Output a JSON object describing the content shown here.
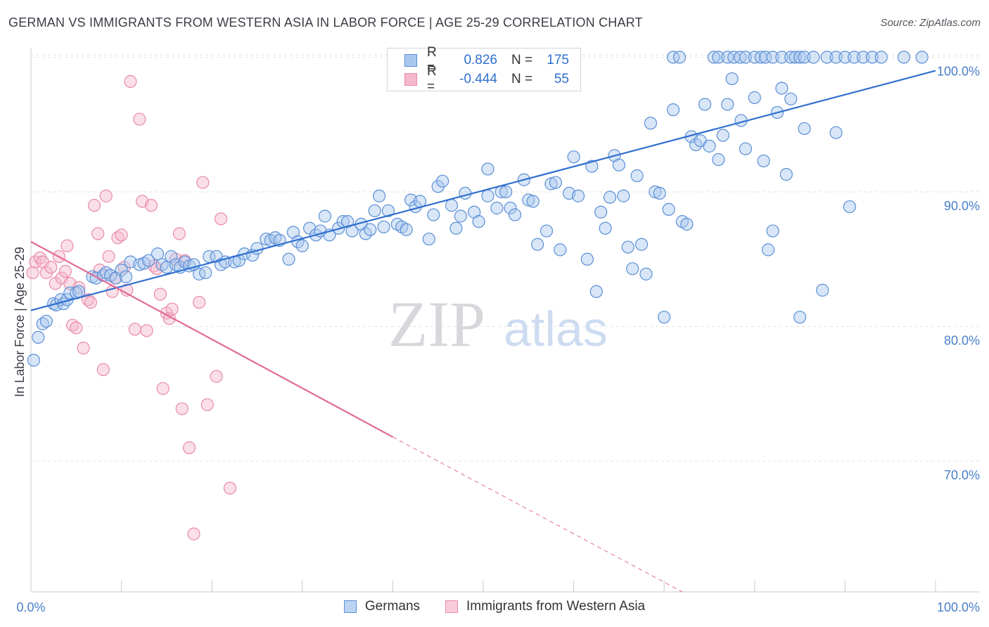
{
  "title": "GERMAN VS IMMIGRANTS FROM WESTERN ASIA IN LABOR FORCE | AGE 25-29 CORRELATION CHART",
  "source": "Source: ZipAtlas.com",
  "watermark": {
    "zip": "ZIP",
    "atlas": "atlas"
  },
  "legend": {
    "r_label": "R =",
    "n_label": "N =",
    "rows": [
      {
        "r": "0.826",
        "n": "175"
      },
      {
        "r": "-0.444",
        "n": "55"
      }
    ]
  },
  "colors": {
    "blue_fill": "#a9c7ee",
    "blue_stroke": "#5b8fd6",
    "blue_line": "#2f6fcf",
    "pink_fill": "#f5b8cc",
    "pink_stroke": "#e98aa9",
    "pink_line": "#e06a96",
    "tick_text": "#4a7fc9",
    "grid": "#e2e2e6"
  },
  "chart_data": {
    "type": "scatter",
    "title": "GERMAN VS IMMIGRANTS FROM WESTERN ASIA IN LABOR FORCE | AGE 25-29 CORRELATION CHART",
    "xlabel": "",
    "ylabel": "In Labor Force | Age 25-29",
    "xlim": [
      0,
      100
    ],
    "ylim": [
      60.3,
      100.7
    ],
    "x_tick_labels": [
      "0.0%",
      "100.0%"
    ],
    "y_ticks": [
      70,
      80,
      90,
      100
    ],
    "y_tick_labels": [
      "70.0%",
      "80.0%",
      "90.0%",
      "100.0%"
    ],
    "grid": true,
    "legend_position": "top-center",
    "series": [
      {
        "name": "Germans",
        "r": 0.826,
        "n": 175,
        "trend": {
          "x0": 0,
          "y0": 81.2,
          "x1": 100,
          "y1": 99.0,
          "dashed_from": null
        },
        "points": [
          [
            0.3,
            77.5
          ],
          [
            0.8,
            79.2
          ],
          [
            1.3,
            80.2
          ],
          [
            1.7,
            80.4
          ],
          [
            2.5,
            81.7
          ],
          [
            2.8,
            81.6
          ],
          [
            3.3,
            82.0
          ],
          [
            3.6,
            81.7
          ],
          [
            4.0,
            82.0
          ],
          [
            4.3,
            82.5
          ],
          [
            5.0,
            82.5
          ],
          [
            5.3,
            82.6
          ],
          [
            6.8,
            83.7
          ],
          [
            7.2,
            83.6
          ],
          [
            8.0,
            83.8
          ],
          [
            8.3,
            84.0
          ],
          [
            8.8,
            83.8
          ],
          [
            9.4,
            83.6
          ],
          [
            10.0,
            84.2
          ],
          [
            10.5,
            83.7
          ],
          [
            11.0,
            84.8
          ],
          [
            12.0,
            84.6
          ],
          [
            12.5,
            84.7
          ],
          [
            13.0,
            84.9
          ],
          [
            14.0,
            85.4
          ],
          [
            14.5,
            84.6
          ],
          [
            15.0,
            84.4
          ],
          [
            15.5,
            85.2
          ],
          [
            16.0,
            84.6
          ],
          [
            16.5,
            84.4
          ],
          [
            17.0,
            84.8
          ],
          [
            17.5,
            84.5
          ],
          [
            18.0,
            84.6
          ],
          [
            18.6,
            83.9
          ],
          [
            19.3,
            84.0
          ],
          [
            19.7,
            85.2
          ],
          [
            20.5,
            85.2
          ],
          [
            21.0,
            84.6
          ],
          [
            21.5,
            84.8
          ],
          [
            22.5,
            84.8
          ],
          [
            23.0,
            84.9
          ],
          [
            23.6,
            85.4
          ],
          [
            24.5,
            85.3
          ],
          [
            25.0,
            85.8
          ],
          [
            26.0,
            86.5
          ],
          [
            26.5,
            86.4
          ],
          [
            27.0,
            86.6
          ],
          [
            27.5,
            86.4
          ],
          [
            28.5,
            85.0
          ],
          [
            29.0,
            87.0
          ],
          [
            29.5,
            86.3
          ],
          [
            30.0,
            86.0
          ],
          [
            30.8,
            87.3
          ],
          [
            31.5,
            86.8
          ],
          [
            32.0,
            87.1
          ],
          [
            32.5,
            88.2
          ],
          [
            33.0,
            86.8
          ],
          [
            34.0,
            87.3
          ],
          [
            34.5,
            87.8
          ],
          [
            35.0,
            87.8
          ],
          [
            35.5,
            87.1
          ],
          [
            36.5,
            87.6
          ],
          [
            37.0,
            86.9
          ],
          [
            37.5,
            87.2
          ],
          [
            38.0,
            88.6
          ],
          [
            38.5,
            89.7
          ],
          [
            39.0,
            87.4
          ],
          [
            39.5,
            88.6
          ],
          [
            40.5,
            87.6
          ],
          [
            41.0,
            87.4
          ],
          [
            41.5,
            87.2
          ],
          [
            42.0,
            89.4
          ],
          [
            42.5,
            88.9
          ],
          [
            43.0,
            89.3
          ],
          [
            44.0,
            86.5
          ],
          [
            44.5,
            88.3
          ],
          [
            45.0,
            90.4
          ],
          [
            45.5,
            90.8
          ],
          [
            46.5,
            89.0
          ],
          [
            47.0,
            87.3
          ],
          [
            47.5,
            88.2
          ],
          [
            48.0,
            89.9
          ],
          [
            49.0,
            88.5
          ],
          [
            49.5,
            87.8
          ],
          [
            50.5,
            89.7
          ],
          [
            50.5,
            91.7
          ],
          [
            51.5,
            88.8
          ],
          [
            52.0,
            90.0
          ],
          [
            52.5,
            90.0
          ],
          [
            53.0,
            88.8
          ],
          [
            53.5,
            88.3
          ],
          [
            54.5,
            90.9
          ],
          [
            55.0,
            89.4
          ],
          [
            55.5,
            89.3
          ],
          [
            56.0,
            86.1
          ],
          [
            57.0,
            87.1
          ],
          [
            57.5,
            90.6
          ],
          [
            58.0,
            90.7
          ],
          [
            58.5,
            85.7
          ],
          [
            59.5,
            89.9
          ],
          [
            60.0,
            92.6
          ],
          [
            60.5,
            89.7
          ],
          [
            61.5,
            85.0
          ],
          [
            62.0,
            91.9
          ],
          [
            62.5,
            82.6
          ],
          [
            63.0,
            88.5
          ],
          [
            63.5,
            87.3
          ],
          [
            64.0,
            89.6
          ],
          [
            64.5,
            92.7
          ],
          [
            65.0,
            92.0
          ],
          [
            65.5,
            89.7
          ],
          [
            66.0,
            85.9
          ],
          [
            66.5,
            84.3
          ],
          [
            67.0,
            91.2
          ],
          [
            67.5,
            86.1
          ],
          [
            68.0,
            83.9
          ],
          [
            68.5,
            95.1
          ],
          [
            69.0,
            90.0
          ],
          [
            69.5,
            89.9
          ],
          [
            70.0,
            80.7
          ],
          [
            70.5,
            88.7
          ],
          [
            71.0,
            96.1
          ],
          [
            72.0,
            87.8
          ],
          [
            72.5,
            87.6
          ],
          [
            73.0,
            94.1
          ],
          [
            73.5,
            93.5
          ],
          [
            74.0,
            93.8
          ],
          [
            74.5,
            96.5
          ],
          [
            75.0,
            93.4
          ],
          [
            76.0,
            92.4
          ],
          [
            76.5,
            94.2
          ],
          [
            77.0,
            96.5
          ],
          [
            77.5,
            98.4
          ],
          [
            78.5,
            95.3
          ],
          [
            79.0,
            93.2
          ],
          [
            80.0,
            97.0
          ],
          [
            81.0,
            92.3
          ],
          [
            81.5,
            85.7
          ],
          [
            82.0,
            87.1
          ],
          [
            82.5,
            95.9
          ],
          [
            83.0,
            97.7
          ],
          [
            83.5,
            91.3
          ],
          [
            84.0,
            96.9
          ],
          [
            85.0,
            80.7
          ],
          [
            85.5,
            94.7
          ],
          [
            87.5,
            82.7
          ],
          [
            89.0,
            94.4
          ],
          [
            90.5,
            88.9
          ],
          [
            71.0,
            100
          ],
          [
            71.7,
            100
          ],
          [
            75.5,
            100
          ],
          [
            76.0,
            100
          ],
          [
            77.0,
            100
          ],
          [
            77.7,
            100
          ],
          [
            78.4,
            100
          ],
          [
            79.0,
            100
          ],
          [
            80.0,
            100
          ],
          [
            80.7,
            100
          ],
          [
            81.2,
            100
          ],
          [
            82.0,
            100
          ],
          [
            83.0,
            100
          ],
          [
            84.0,
            100
          ],
          [
            84.5,
            100
          ],
          [
            85.0,
            100
          ],
          [
            85.5,
            100
          ],
          [
            86.5,
            100
          ],
          [
            88.0,
            100
          ],
          [
            89.0,
            100
          ],
          [
            90.0,
            100
          ],
          [
            91.0,
            100
          ],
          [
            92.0,
            100
          ],
          [
            93.0,
            100
          ],
          [
            94.0,
            100
          ],
          [
            96.5,
            100
          ],
          [
            98.5,
            100
          ]
        ]
      },
      {
        "name": "Immigrants from Western Asia",
        "r": -0.444,
        "n": 55,
        "trend": {
          "x0": 0,
          "y0": 86.3,
          "x1": 40.0,
          "y1": 71.8,
          "dashed_to_x": 72.0,
          "dashed_to_y": 60.3
        },
        "points": [
          [
            0.2,
            84.0
          ],
          [
            0.5,
            84.8
          ],
          [
            1.0,
            85.1
          ],
          [
            1.3,
            84.8
          ],
          [
            1.7,
            84.0
          ],
          [
            2.2,
            84.4
          ],
          [
            2.7,
            83.2
          ],
          [
            3.1,
            85.2
          ],
          [
            3.4,
            83.6
          ],
          [
            3.8,
            84.1
          ],
          [
            4.0,
            86.0
          ],
          [
            4.3,
            83.2
          ],
          [
            4.6,
            80.1
          ],
          [
            5.0,
            79.9
          ],
          [
            5.3,
            82.9
          ],
          [
            5.8,
            78.4
          ],
          [
            6.3,
            82.0
          ],
          [
            6.6,
            81.8
          ],
          [
            7.0,
            89.0
          ],
          [
            7.4,
            86.9
          ],
          [
            7.6,
            84.2
          ],
          [
            8.0,
            76.8
          ],
          [
            8.3,
            89.7
          ],
          [
            8.6,
            85.2
          ],
          [
            9.0,
            82.6
          ],
          [
            9.3,
            83.6
          ],
          [
            9.6,
            86.6
          ],
          [
            10.0,
            86.8
          ],
          [
            10.3,
            84.4
          ],
          [
            10.6,
            82.7
          ],
          [
            11.0,
            98.2
          ],
          [
            11.5,
            79.8
          ],
          [
            12.0,
            95.4
          ],
          [
            12.3,
            89.3
          ],
          [
            12.8,
            79.7
          ],
          [
            13.3,
            89.0
          ],
          [
            13.6,
            84.5
          ],
          [
            13.9,
            84.3
          ],
          [
            14.3,
            82.4
          ],
          [
            14.6,
            75.4
          ],
          [
            15.0,
            81.0
          ],
          [
            15.3,
            80.6
          ],
          [
            15.6,
            81.3
          ],
          [
            16.0,
            85.0
          ],
          [
            16.4,
            86.9
          ],
          [
            16.7,
            73.9
          ],
          [
            17.0,
            84.9
          ],
          [
            17.5,
            71.0
          ],
          [
            18.0,
            64.6
          ],
          [
            18.6,
            81.8
          ],
          [
            19.0,
            90.7
          ],
          [
            19.5,
            74.2
          ],
          [
            20.5,
            76.3
          ],
          [
            21.0,
            88.0
          ],
          [
            22.0,
            68.0
          ]
        ]
      }
    ]
  }
}
